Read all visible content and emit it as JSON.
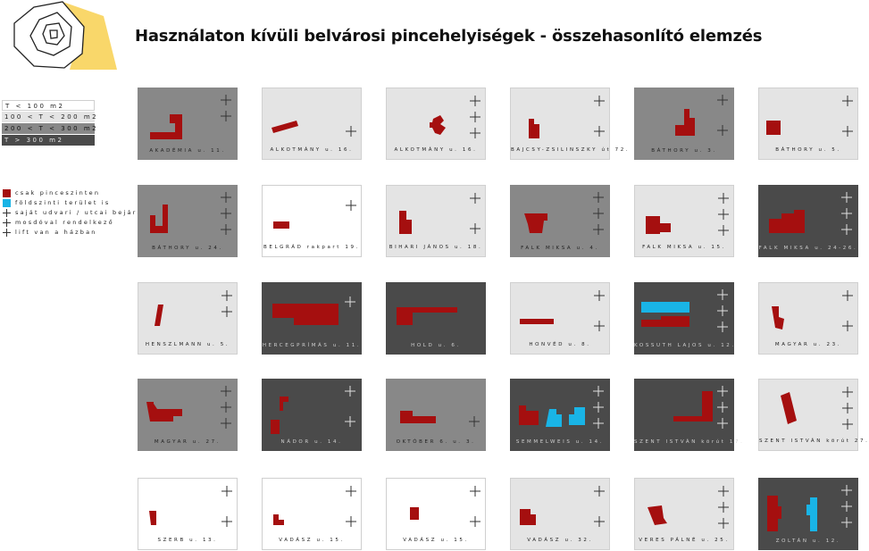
{
  "title": "Használaton kívüli belvárosi pincehelyiségek - összehasonlító elemzés",
  "colors": {
    "basement": "#a50f0f",
    "ground": "#19b4e6",
    "t1": "#ffffff",
    "t2": "#e4e4e4",
    "t3": "#888888",
    "t4": "#4a4a4a",
    "logo_yellow": "#f9d76a"
  },
  "size_legend": [
    {
      "label": "T < 100 m2",
      "tone": "t1"
    },
    {
      "label": "100 < T < 200 m2",
      "tone": "t2"
    },
    {
      "label": "200 < T < 300 m2",
      "tone": "t3"
    },
    {
      "label": "T > 300 m2",
      "tone": "t4"
    }
  ],
  "symbol_legend": [
    {
      "label": "csak pinceszinten",
      "symbol": "basement-swatch"
    },
    {
      "label": "földszinti terület is",
      "symbol": "ground-swatch"
    },
    {
      "label": "saját udvari / utcai bejárat",
      "symbol": "plus-icon"
    },
    {
      "label": "mosdóval rendelkező",
      "symbol": "plus-icon"
    },
    {
      "label": "lift van a házban",
      "symbol": "plus-icon"
    }
  ],
  "cards": [
    {
      "label": "AKADÉMIA u. 11.",
      "tone": "t3",
      "plus": 2
    },
    {
      "label": "ALKOTMÁNY u. 16.",
      "tone": "t2",
      "plus": 1
    },
    {
      "label": "ALKOTMÁNY u. 16.",
      "tone": "t2",
      "plus": 3
    },
    {
      "label": "BAJCSY-ZSILINSZKY út 72.",
      "tone": "t2",
      "plus": 2
    },
    {
      "label": "BÁTHORY u. 3.",
      "tone": "t3",
      "plus": 2
    },
    {
      "label": "BÁTHORY u. 5.",
      "tone": "t2",
      "plus": 2
    },
    {
      "label": "BÁTHORY u. 24.",
      "tone": "t3",
      "plus": 3
    },
    {
      "label": "BELGRÁD rakpart 19.",
      "tone": "t1",
      "plus": 1
    },
    {
      "label": "BIHARI JÁNOS u. 18.",
      "tone": "t2",
      "plus": 2
    },
    {
      "label": "FALK MIKSA u. 4.",
      "tone": "t3",
      "plus": 3
    },
    {
      "label": "FALK MIKSA u. 15.",
      "tone": "t2",
      "plus": 3
    },
    {
      "label": "FALK MIKSA u. 24-26.",
      "tone": "t4",
      "plus": 3
    },
    {
      "label": "HENSZLMANN u. 5.",
      "tone": "t2",
      "plus": 2
    },
    {
      "label": "HERCEGPRÍMÁS u. 11.",
      "tone": "t4",
      "plus": 1
    },
    {
      "label": "HOLD u. 6.",
      "tone": "t4",
      "plus": 0
    },
    {
      "label": "HONVÉD u. 8.",
      "tone": "t2",
      "plus": 2
    },
    {
      "label": "KOSSUTH LAJOS u. 12.",
      "tone": "t4",
      "plus": 3
    },
    {
      "label": "MAGYAR u. 23.",
      "tone": "t2",
      "plus": 2
    },
    {
      "label": "MAGYAR u. 27.",
      "tone": "t3",
      "plus": 3
    },
    {
      "label": "NÁDOR u. 14.",
      "tone": "t4",
      "plus": 2
    },
    {
      "label": "OKTÓBER 6. u. 3.",
      "tone": "t3",
      "plus": 1
    },
    {
      "label": "SEMMELWEIS u. 14.",
      "tone": "t4",
      "plus": 3
    },
    {
      "label": "SZENT ISTVÁN körút 17.",
      "tone": "t4",
      "plus": 3
    },
    {
      "label": "SZENT ISTVÁN körút 27.",
      "tone": "t2",
      "plus": 3
    },
    {
      "label": "SZERB u. 13.",
      "tone": "t1",
      "plus": 2
    },
    {
      "label": "VADÁSZ u. 15.",
      "tone": "t1",
      "plus": 2
    },
    {
      "label": "VADÁSZ u. 15.",
      "tone": "t1",
      "plus": 2
    },
    {
      "label": "VADÁSZ u. 32.",
      "tone": "t2",
      "plus": 2
    },
    {
      "label": "VERES PÁLNÉ u. 25.",
      "tone": "t2",
      "plus": 3
    },
    {
      "label": "ZOLTÁN u. 12.",
      "tone": "t4",
      "plus": 3
    }
  ]
}
